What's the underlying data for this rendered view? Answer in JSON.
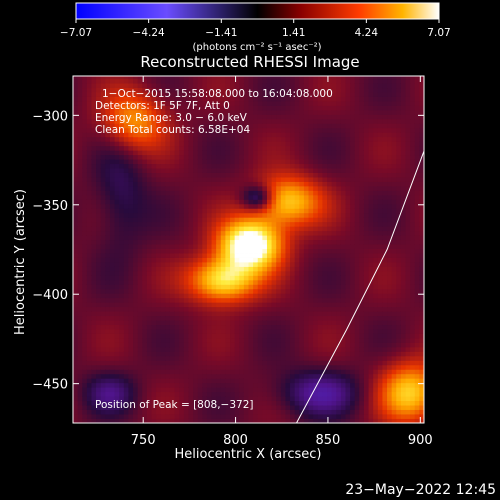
{
  "chart_data": {
    "type": "heatmap",
    "title": "Reconstructed RHESSI Image",
    "xlabel": "Heliocentric X (arcsec)",
    "ylabel": "Heliocentric Y (arcsec)",
    "xlim": [
      712,
      902
    ],
    "ylim": [
      -472,
      -278
    ],
    "x_ticks": [
      750,
      800,
      850,
      900
    ],
    "y_ticks": [
      -300,
      -350,
      -400,
      -450
    ],
    "x_tick_labels": [
      "750",
      "800",
      "850",
      "900"
    ],
    "y_tick_labels": [
      "−300",
      "−350",
      "−400",
      "−450"
    ],
    "colorbar": {
      "min": -7.07,
      "max": 7.07,
      "ticks": [
        -7.07,
        -4.24,
        -1.41,
        1.41,
        4.24,
        7.07
      ],
      "tick_labels": [
        "−7.07",
        "−4.24",
        "−1.41",
        "1.41",
        "4.24",
        "7.07"
      ],
      "units": "(photons cm⁻² s⁻¹ asec⁻²)"
    },
    "annotations": {
      "time": "1−Oct−2015 15:58:08.000 to 16:04:08.000",
      "detectors": "Detectors: 1F 5F 7F, Att 0",
      "energy": "Energy Range: 3.0 − 6.0 keV",
      "clean": "Clean     Total counts: 6.58E+04",
      "peak": "Position of Peak = [808,−372]"
    },
    "peak": {
      "x": 808,
      "y": -372
    },
    "limb_curve": [
      {
        "x": 833,
        "y": -472
      },
      {
        "x": 860,
        "y": -420
      },
      {
        "x": 882,
        "y": -375
      },
      {
        "x": 902,
        "y": -320
      }
    ],
    "features": [
      {
        "x": 808,
        "y": -372,
        "sigma_x": 12,
        "sigma_y": 10,
        "amp": 7.07
      },
      {
        "x": 793,
        "y": -392,
        "sigma_x": 13,
        "sigma_y": 9,
        "amp": 5.4
      },
      {
        "x": 828,
        "y": -348,
        "sigma_x": 13,
        "sigma_y": 10,
        "amp": 4.6
      },
      {
        "x": 812,
        "y": -346,
        "sigma_x": 6,
        "sigma_y": 5,
        "amp": -3.4
      },
      {
        "x": 745,
        "y": -303,
        "sigma_x": 12,
        "sigma_y": 12,
        "amp": 3.6
      },
      {
        "x": 895,
        "y": -455,
        "sigma_x": 12,
        "sigma_y": 12,
        "amp": 4.6
      },
      {
        "x": 732,
        "y": -455,
        "sigma_x": 10,
        "sigma_y": 8,
        "amp": -2.0
      },
      {
        "x": 845,
        "y": -455,
        "sigma_x": 16,
        "sigma_y": 9,
        "amp": -2.6
      },
      {
        "x": 738,
        "y": -345,
        "sigma_x": 10,
        "sigma_y": 22,
        "amp": -1.6
      }
    ],
    "grid": false
  },
  "date_stamp": "23−May−2022 12:45"
}
